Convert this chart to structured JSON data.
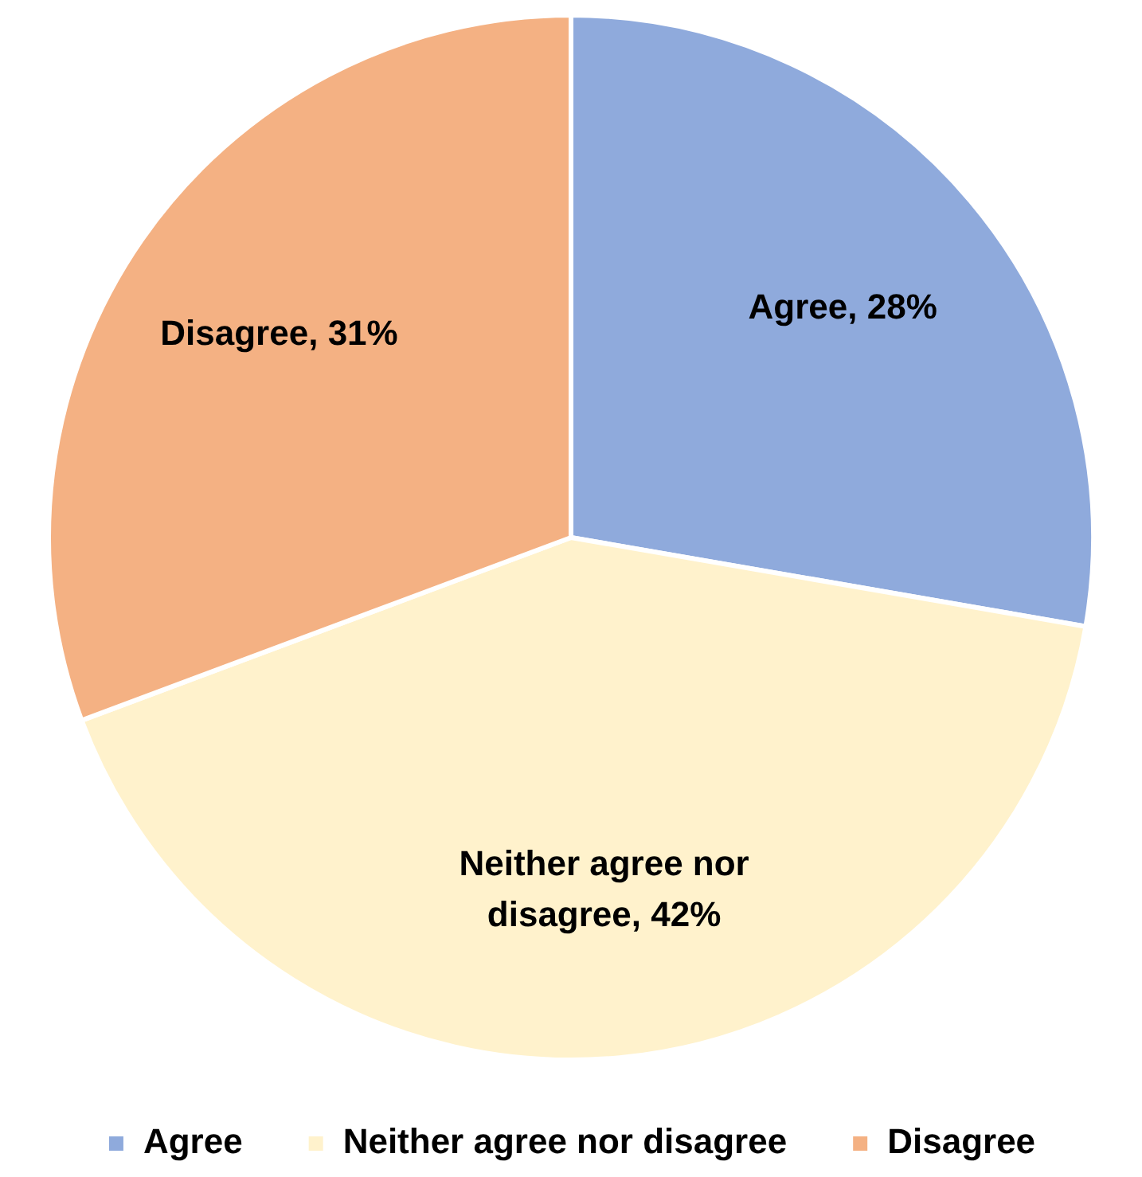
{
  "chart_data": {
    "type": "pie",
    "categories": [
      "Agree",
      "Neither agree nor disagree",
      "Disagree"
    ],
    "values": [
      28,
      42,
      31
    ],
    "colors": [
      "#8faadc",
      "#fff2cc",
      "#f4b183"
    ],
    "value_labels": [
      "Agree, 28%",
      "Neither agree nor disagree, 42%",
      "Disagree, 31%"
    ],
    "legend": "bottom"
  }
}
